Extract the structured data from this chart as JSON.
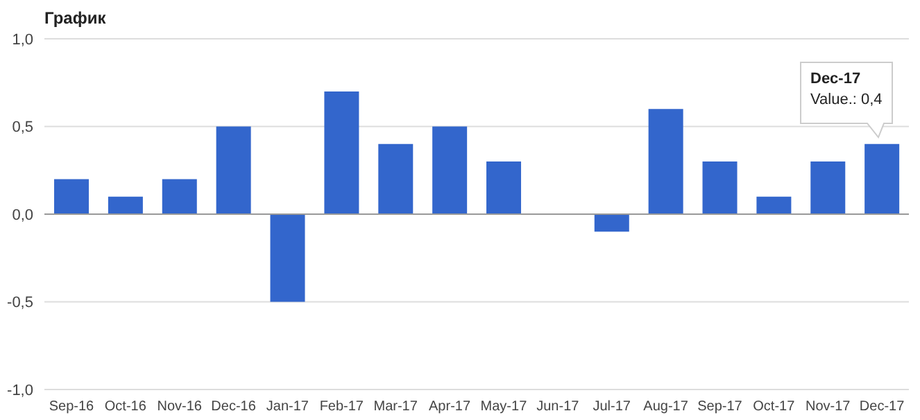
{
  "chart_data": {
    "type": "bar",
    "title": "График",
    "categories": [
      "Sep-16",
      "Oct-16",
      "Nov-16",
      "Dec-16",
      "Jan-17",
      "Feb-17",
      "Mar-17",
      "Apr-17",
      "May-17",
      "Jun-17",
      "Jul-17",
      "Aug-17",
      "Sep-17",
      "Oct-17",
      "Nov-17",
      "Dec-17"
    ],
    "values": [
      0.2,
      0.1,
      0.2,
      0.5,
      -0.5,
      0.7,
      0.4,
      0.5,
      0.3,
      0,
      -0.1,
      0.6,
      0.3,
      0.1,
      0.3,
      0.4
    ],
    "color": "#3366cc",
    "ylim": [
      -1,
      1
    ],
    "yticks": [
      {
        "value": 1,
        "label": "1,0"
      },
      {
        "value": 0.5,
        "label": "0,5"
      },
      {
        "value": 0,
        "label": "0,0"
      },
      {
        "value": -0.5,
        "label": "-0,5"
      },
      {
        "value": -1,
        "label": "-1,0"
      }
    ],
    "grid": "y",
    "legend": false,
    "annotations": [
      "Dec-17",
      "Value.: 0,4"
    ]
  }
}
